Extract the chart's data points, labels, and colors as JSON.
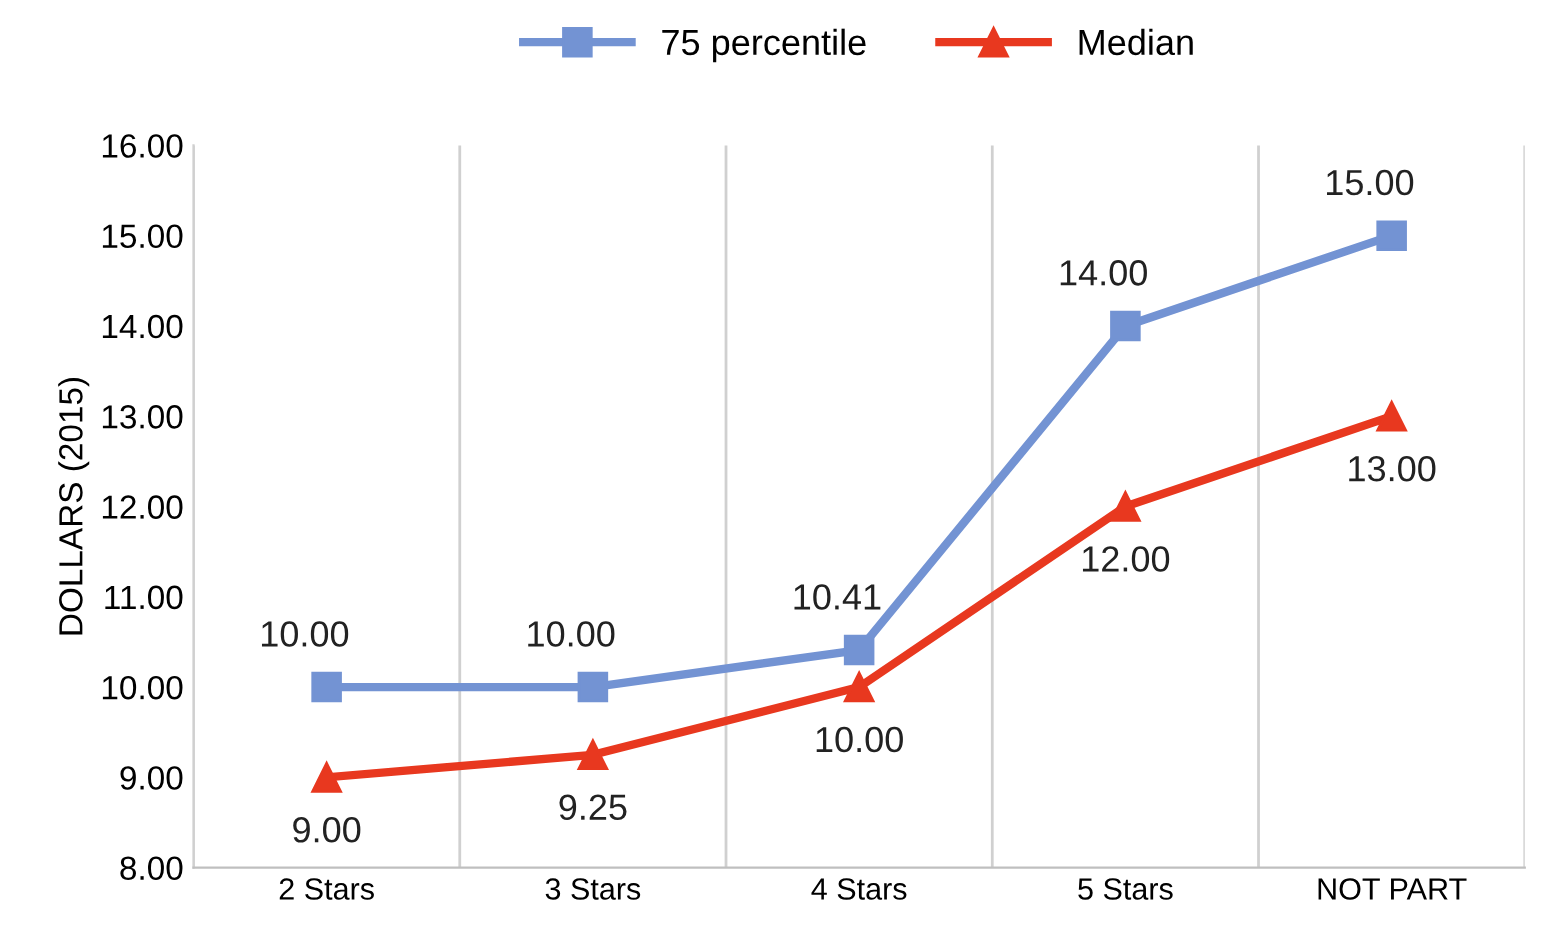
{
  "chart_data": {
    "type": "line",
    "ylabel": "DOLLARS (2015)",
    "categories": [
      "2 Stars",
      "3 Stars",
      "4 Stars",
      "5 Stars",
      "NOT PART"
    ],
    "series": [
      {
        "name": "75 percentile",
        "color": "#7393d3",
        "marker": "square",
        "values": [
          10,
          10,
          10.41,
          14,
          15
        ],
        "value_labels": [
          "10.00",
          "10.00",
          "10.41",
          "14.00",
          "15.00"
        ]
      },
      {
        "name": "Median",
        "color": "#e8381f",
        "marker": "triangle",
        "values": [
          9,
          9.25,
          10,
          12,
          13
        ],
        "value_labels": [
          "9.00",
          "9.25",
          "10.00",
          "12.00",
          "13.00"
        ]
      }
    ],
    "ylim": [
      8,
      16
    ],
    "yticks": [
      {
        "value": 8,
        "label": "8.00"
      },
      {
        "value": 9,
        "label": "9.00"
      },
      {
        "value": 10,
        "label": "10.00"
      },
      {
        "value": 11,
        "label": "11.00"
      },
      {
        "value": 12,
        "label": "12.00"
      },
      {
        "value": 13,
        "label": "13.00"
      },
      {
        "value": 14,
        "label": "14.00"
      },
      {
        "value": 15,
        "label": "15.00"
      },
      {
        "value": 16,
        "label": "16.00"
      }
    ],
    "grid": "x",
    "legend": "top",
    "line_style": "solid"
  }
}
